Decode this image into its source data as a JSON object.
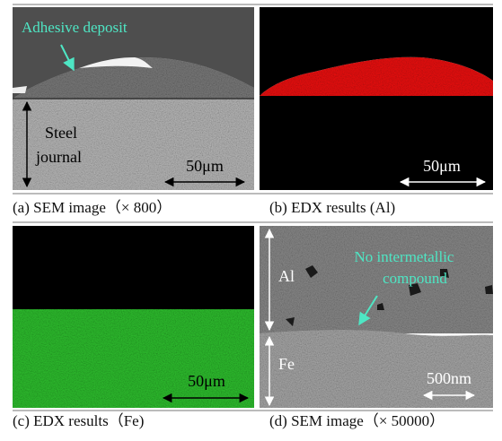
{
  "panels": [
    {
      "caption": "(a) SEM image（× 800）",
      "annotation": "Adhesive deposit",
      "labels": [
        "Steel",
        "journal"
      ],
      "scale_bar": "50μm"
    },
    {
      "caption": "(b) EDX results (Al)",
      "scale_bar": "50μm"
    },
    {
      "caption": "(c) EDX results（Fe)",
      "scale_bar": "50μm"
    },
    {
      "caption": "(d) SEM image（× 50000）",
      "annotation": [
        "No intermetallic",
        "compound"
      ],
      "labels": [
        "Al",
        "Fe"
      ],
      "scale_bar": "500nm"
    }
  ]
}
